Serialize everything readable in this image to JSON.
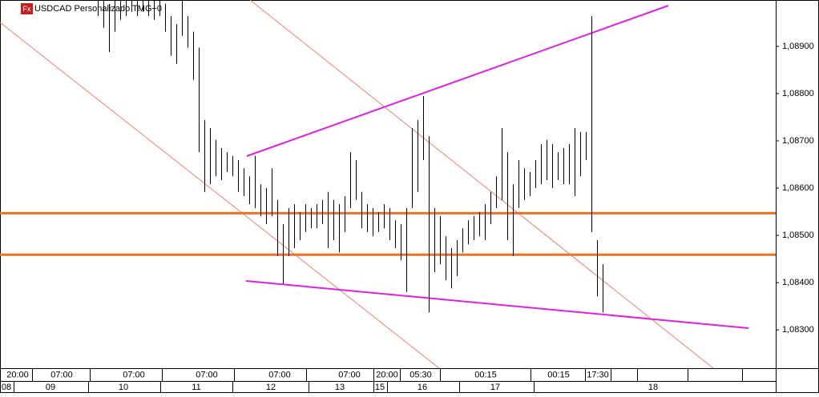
{
  "chart_data": {
    "type": "range-bar",
    "title": "USDCAD Personalizado TMG+0",
    "icon": "Fx",
    "color": "#000000",
    "ylim": [
      1.08219,
      1.08998
    ],
    "yticks": [
      {
        "value": 1.083,
        "label": "1,08300"
      },
      {
        "value": 1.084,
        "label": "1,08400"
      },
      {
        "value": 1.085,
        "label": "1,08500"
      },
      {
        "value": 1.086,
        "label": "1,08600"
      },
      {
        "value": 1.087,
        "label": "1,08700"
      },
      {
        "value": 1.088,
        "label": "1,08800"
      },
      {
        "value": 1.089,
        "label": "1,08900"
      }
    ],
    "high": [
      1.08998,
      1.08998,
      1.0899,
      1.08998,
      1.08998,
      1.08998,
      1.08998,
      1.08998,
      1.08998,
      1.08998,
      1.08998,
      1.08998,
      1.0899,
      1.08964,
      1.08947,
      1.08998,
      1.08964,
      1.08931,
      1.08897,
      1.08744,
      1.08727,
      1.08702,
      1.08685,
      1.08676,
      1.08668,
      1.08659,
      1.08642,
      1.08625,
      1.08668,
      1.08608,
      1.086,
      1.08642,
      1.08575,
      1.08524,
      1.08558,
      1.08566,
      1.08549,
      1.08566,
      1.08558,
      1.08566,
      1.08575,
      1.08592,
      1.08575,
      1.08566,
      1.08583,
      1.08676,
      1.08659,
      1.08592,
      1.08566,
      1.08558,
      1.08549,
      1.08566,
      1.08558,
      1.08532,
      1.08524,
      1.08558,
      1.08727,
      1.08744,
      1.08795,
      1.0871,
      1.08558,
      1.08541,
      1.08498,
      1.08473,
      1.0849,
      1.08515,
      1.08532,
      1.08541,
      1.08549,
      1.08566,
      1.08592,
      1.08625,
      1.08727,
      1.08676,
      1.08608,
      1.08659,
      1.08642,
      1.08634,
      1.08659,
      1.08693,
      1.08702,
      1.08693,
      1.08676,
      1.08685,
      1.08693,
      1.08727,
      1.08719,
      1.08719,
      1.08964,
      1.0849,
      1.08439
    ],
    "low": [
      1.08964,
      1.08939,
      1.08888,
      1.08931,
      1.08956,
      1.08964,
      1.08973,
      1.08964,
      1.08973,
      1.08964,
      1.08956,
      1.08964,
      1.08931,
      1.0888,
      1.08863,
      1.08922,
      1.08897,
      1.08829,
      1.08676,
      1.08592,
      1.08608,
      1.08625,
      1.08617,
      1.08634,
      1.08625,
      1.08592,
      1.08583,
      1.08566,
      1.08558,
      1.08541,
      1.08524,
      1.08541,
      1.08456,
      1.08397,
      1.08456,
      1.08473,
      1.0849,
      1.08507,
      1.08515,
      1.08515,
      1.08524,
      1.08473,
      1.0849,
      1.08464,
      1.08507,
      1.08558,
      1.08575,
      1.08515,
      1.08507,
      1.08498,
      1.08507,
      1.08515,
      1.0849,
      1.08473,
      1.08447,
      1.0838,
      1.08558,
      1.08592,
      1.08659,
      1.08337,
      1.08422,
      1.08439,
      1.08405,
      1.08388,
      1.08414,
      1.08464,
      1.08481,
      1.0849,
      1.08498,
      1.0849,
      1.08524,
      1.08558,
      1.08575,
      1.0849,
      1.08456,
      1.08558,
      1.08575,
      1.08583,
      1.086,
      1.08608,
      1.08617,
      1.086,
      1.08617,
      1.08608,
      1.08608,
      1.08583,
      1.08625,
      1.08659,
      1.08507,
      1.08371,
      1.08337
    ],
    "levels": [
      {
        "value": 1.08547,
        "color": "#f07020"
      },
      {
        "value": 1.08459,
        "color": "#f07020"
      }
    ],
    "time_labels": [
      "20:00",
      "07:00",
      "07:00",
      "07:00",
      "07:00",
      "07:00",
      "20:00",
      "05:30",
      "00:15",
      "00:15",
      "17:30"
    ],
    "date_labels": [
      "08",
      "09",
      "10",
      "11",
      "12",
      "13",
      "15",
      "16",
      "17",
      "18"
    ]
  }
}
